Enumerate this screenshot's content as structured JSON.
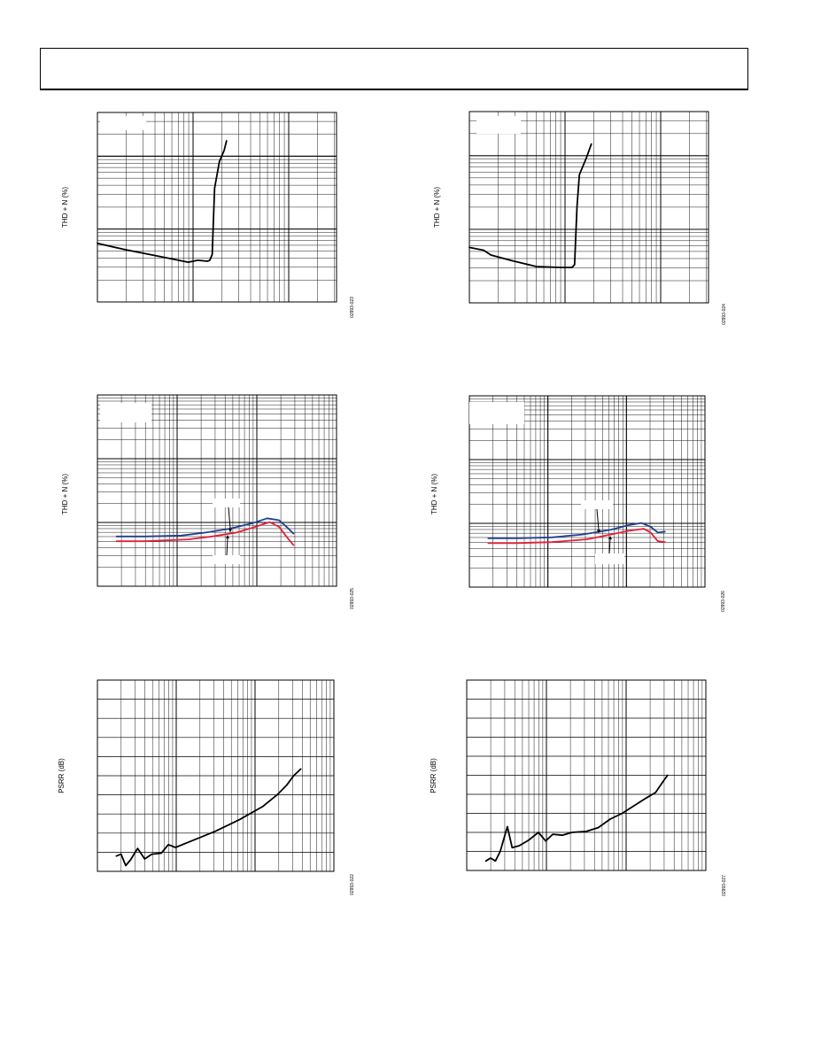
{
  "chart_data": [
    {
      "type": "line",
      "ylabel": "THD + N (%)",
      "figure_id": "02993-023",
      "log_x": true,
      "log_y": true,
      "x_decades": 2.5,
      "y_decades": 2.6,
      "series": [
        {
          "color": "#000000",
          "points": [
            [
              0,
              0.69
            ],
            [
              0.05,
              0.705
            ],
            [
              0.12,
              0.725
            ],
            [
              0.2,
              0.745
            ],
            [
              0.3,
              0.77
            ],
            [
              0.38,
              0.79
            ],
            [
              0.42,
              0.78
            ],
            [
              0.46,
              0.785
            ],
            [
              0.47,
              0.78
            ],
            [
              0.48,
              0.75
            ],
            [
              0.49,
              0.4
            ],
            [
              0.51,
              0.26
            ],
            [
              0.53,
              0.2
            ],
            [
              0.54,
              0.15
            ]
          ]
        }
      ]
    },
    {
      "type": "line",
      "ylabel": "THD + N (%)",
      "figure_id": "02993-024",
      "log_x": true,
      "log_y": true,
      "x_decades": 2.5,
      "y_decades": 2.6,
      "series": [
        {
          "color": "#000000",
          "points": [
            [
              0,
              0.71
            ],
            [
              0.06,
              0.725
            ],
            [
              0.09,
              0.75
            ],
            [
              0.18,
              0.78
            ],
            [
              0.28,
              0.81
            ],
            [
              0.38,
              0.815
            ],
            [
              0.43,
              0.815
            ],
            [
              0.44,
              0.8
            ],
            [
              0.45,
              0.5
            ],
            [
              0.46,
              0.33
            ],
            [
              0.49,
              0.24
            ],
            [
              0.51,
              0.17
            ]
          ]
        }
      ]
    },
    {
      "type": "line",
      "ylabel": "THD + N (%)",
      "figure_id": "02993-025",
      "log_x": true,
      "log_y": true,
      "x_decades": 3,
      "y_decades": 3,
      "series": [
        {
          "color": "#1f3f8f",
          "points": [
            [
              0.08,
              0.74
            ],
            [
              0.2,
              0.74
            ],
            [
              0.35,
              0.735
            ],
            [
              0.45,
              0.72
            ],
            [
              0.55,
              0.7
            ],
            [
              0.65,
              0.67
            ],
            [
              0.71,
              0.645
            ],
            [
              0.76,
              0.655
            ],
            [
              0.8,
              0.7
            ],
            [
              0.82,
              0.725
            ]
          ]
        },
        {
          "color": "#e0203a",
          "points": [
            [
              0.08,
              0.765
            ],
            [
              0.2,
              0.765
            ],
            [
              0.38,
              0.755
            ],
            [
              0.48,
              0.74
            ],
            [
              0.58,
              0.72
            ],
            [
              0.66,
              0.69
            ],
            [
              0.72,
              0.665
            ],
            [
              0.76,
              0.69
            ],
            [
              0.79,
              0.74
            ],
            [
              0.82,
              0.785
            ]
          ]
        }
      ]
    },
    {
      "type": "line",
      "ylabel": "THD + N (%)",
      "figure_id": "02993-026",
      "log_x": true,
      "log_y": true,
      "x_decades": 3,
      "y_decades": 3,
      "series": [
        {
          "color": "#1f3f8f",
          "points": [
            [
              0.08,
              0.745
            ],
            [
              0.2,
              0.745
            ],
            [
              0.35,
              0.74
            ],
            [
              0.48,
              0.725
            ],
            [
              0.6,
              0.7
            ],
            [
              0.68,
              0.675
            ],
            [
              0.73,
              0.665
            ],
            [
              0.77,
              0.685
            ],
            [
              0.8,
              0.715
            ],
            [
              0.83,
              0.71
            ]
          ]
        },
        {
          "color": "#e0203a",
          "points": [
            [
              0.08,
              0.77
            ],
            [
              0.2,
              0.77
            ],
            [
              0.35,
              0.765
            ],
            [
              0.5,
              0.75
            ],
            [
              0.6,
              0.725
            ],
            [
              0.68,
              0.705
            ],
            [
              0.74,
              0.695
            ],
            [
              0.77,
              0.715
            ],
            [
              0.8,
              0.76
            ],
            [
              0.83,
              0.765
            ]
          ]
        }
      ]
    },
    {
      "type": "line",
      "ylabel": "PSRR (dB)",
      "figure_id": "02993-022",
      "log_x": true,
      "log_y": false,
      "x_decades": 3,
      "y_lines": 10,
      "series": [
        {
          "color": "#000000",
          "points": [
            [
              0.08,
              0.92
            ],
            [
              0.1,
              0.91
            ],
            [
              0.12,
              0.97
            ],
            [
              0.14,
              0.94
            ],
            [
              0.17,
              0.88
            ],
            [
              0.2,
              0.935
            ],
            [
              0.23,
              0.91
            ],
            [
              0.27,
              0.905
            ],
            [
              0.3,
              0.86
            ],
            [
              0.33,
              0.875
            ],
            [
              0.4,
              0.84
            ],
            [
              0.5,
              0.79
            ],
            [
              0.6,
              0.73
            ],
            [
              0.7,
              0.66
            ],
            [
              0.76,
              0.6
            ],
            [
              0.8,
              0.55
            ],
            [
              0.83,
              0.5
            ],
            [
              0.86,
              0.465
            ]
          ]
        }
      ]
    },
    {
      "type": "line",
      "ylabel": "PSRR (dB)",
      "figure_id": "02993-027",
      "log_x": true,
      "log_y": false,
      "x_decades": 3,
      "y_lines": 10,
      "series": [
        {
          "color": "#000000",
          "points": [
            [
              0.08,
              0.95
            ],
            [
              0.1,
              0.935
            ],
            [
              0.12,
              0.95
            ],
            [
              0.14,
              0.9
            ],
            [
              0.17,
              0.77
            ],
            [
              0.19,
              0.88
            ],
            [
              0.22,
              0.87
            ],
            [
              0.26,
              0.84
            ],
            [
              0.3,
              0.8
            ],
            [
              0.33,
              0.845
            ],
            [
              0.36,
              0.81
            ],
            [
              0.4,
              0.815
            ],
            [
              0.44,
              0.8
            ],
            [
              0.5,
              0.795
            ],
            [
              0.55,
              0.775
            ],
            [
              0.6,
              0.73
            ],
            [
              0.65,
              0.7
            ],
            [
              0.7,
              0.66
            ],
            [
              0.75,
              0.62
            ],
            [
              0.79,
              0.59
            ],
            [
              0.82,
              0.535
            ],
            [
              0.84,
              0.5
            ]
          ]
        }
      ]
    }
  ]
}
